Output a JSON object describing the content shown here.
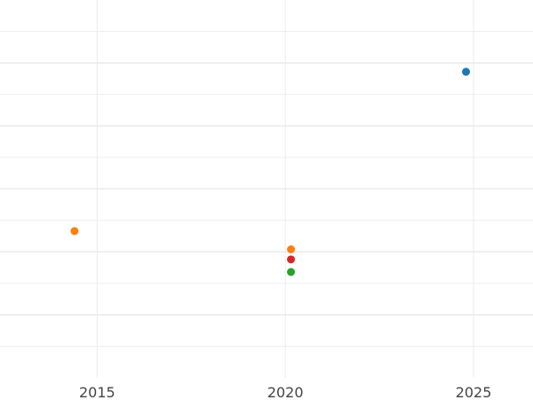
{
  "chart_data": {
    "type": "scatter",
    "title": "",
    "xlabel": "",
    "ylabel": "",
    "x_ticks": [
      "2015",
      "2020",
      "2025"
    ],
    "xlim": [
      2012.42,
      2026.58
    ],
    "ylim": [
      0,
      6
    ],
    "grid": true,
    "legend": "none",
    "points": [
      {
        "x": 2024.8,
        "y": 4.86,
        "color": "#1f77b4"
      },
      {
        "x": 2014.4,
        "y": 2.33,
        "color": "#ff7f0e"
      },
      {
        "x": 2020.15,
        "y": 2.04,
        "color": "#ff7f0e"
      },
      {
        "x": 2020.15,
        "y": 1.88,
        "color": "#d62728"
      },
      {
        "x": 2020.15,
        "y": 1.68,
        "color": "#2ca02c"
      }
    ],
    "colors": {
      "grid": "#ebebeb"
    }
  }
}
